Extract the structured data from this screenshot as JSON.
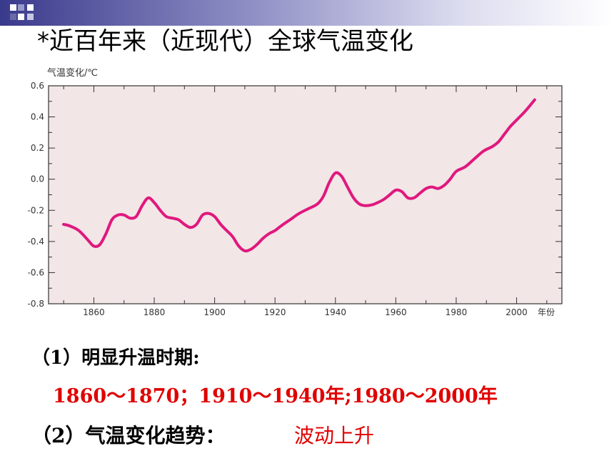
{
  "slide": {
    "title": "*近百年来（近现代）全球气温变化",
    "question1": "（1）明显升温时期:",
    "answer1": "1860～1870；1910～1940年;1980～2000年",
    "question2": "（2）气温变化趋势：",
    "answer2": "波动上升"
  },
  "colors": {
    "header_dark": "#3a3a8c",
    "plot_bg": "#f2e6e6",
    "line": "#e0187e",
    "answer": "#e00000"
  },
  "chart_data": {
    "type": "line",
    "title": "",
    "ylabel": "气温变化/℃",
    "xlabel": "年份",
    "xlim": [
      1845,
      2015
    ],
    "ylim": [
      -0.8,
      0.6
    ],
    "xticks": [
      1860,
      1880,
      1900,
      1920,
      1940,
      1960,
      1980,
      2000
    ],
    "yticks": [
      0.6,
      0.4,
      0.2,
      0.0,
      -0.2,
      -0.4,
      -0.6,
      -0.8
    ],
    "ytick_labels": [
      "0.6",
      "0.4",
      "0.2",
      "0.0",
      "-0.2",
      "-0.4",
      "-0.6",
      "-0.8"
    ],
    "grid": false,
    "series": [
      {
        "x": [
          1850,
          1852,
          1855,
          1858,
          1860,
          1862,
          1864,
          1866,
          1868,
          1870,
          1872,
          1874,
          1876,
          1878,
          1880,
          1882,
          1884,
          1886,
          1888,
          1890,
          1892,
          1894,
          1896,
          1898,
          1900,
          1902,
          1904,
          1906,
          1908,
          1910,
          1912,
          1914,
          1916,
          1918,
          1920,
          1922,
          1925,
          1928,
          1931,
          1934,
          1936,
          1938,
          1940,
          1942,
          1944,
          1946,
          1948,
          1950,
          1952,
          1954,
          1956,
          1958,
          1960,
          1962,
          1964,
          1966,
          1968,
          1970,
          1972,
          1974,
          1976,
          1978,
          1980,
          1983,
          1986,
          1989,
          1992,
          1994,
          1996,
          1998,
          2000,
          2003,
          2006
        ],
        "y": [
          -0.29,
          -0.3,
          -0.33,
          -0.39,
          -0.43,
          -0.42,
          -0.35,
          -0.26,
          -0.23,
          -0.23,
          -0.25,
          -0.24,
          -0.17,
          -0.12,
          -0.15,
          -0.2,
          -0.24,
          -0.25,
          -0.26,
          -0.29,
          -0.31,
          -0.29,
          -0.23,
          -0.22,
          -0.24,
          -0.29,
          -0.33,
          -0.37,
          -0.43,
          -0.46,
          -0.45,
          -0.42,
          -0.38,
          -0.35,
          -0.33,
          -0.3,
          -0.26,
          -0.22,
          -0.19,
          -0.16,
          -0.11,
          -0.02,
          0.04,
          0.02,
          -0.05,
          -0.12,
          -0.16,
          -0.17,
          -0.165,
          -0.15,
          -0.13,
          -0.1,
          -0.07,
          -0.08,
          -0.12,
          -0.12,
          -0.09,
          -0.06,
          -0.05,
          -0.06,
          -0.04,
          0.0,
          0.05,
          0.08,
          0.13,
          0.18,
          0.21,
          0.24,
          0.29,
          0.34,
          0.38,
          0.44,
          0.51
        ]
      }
    ]
  }
}
